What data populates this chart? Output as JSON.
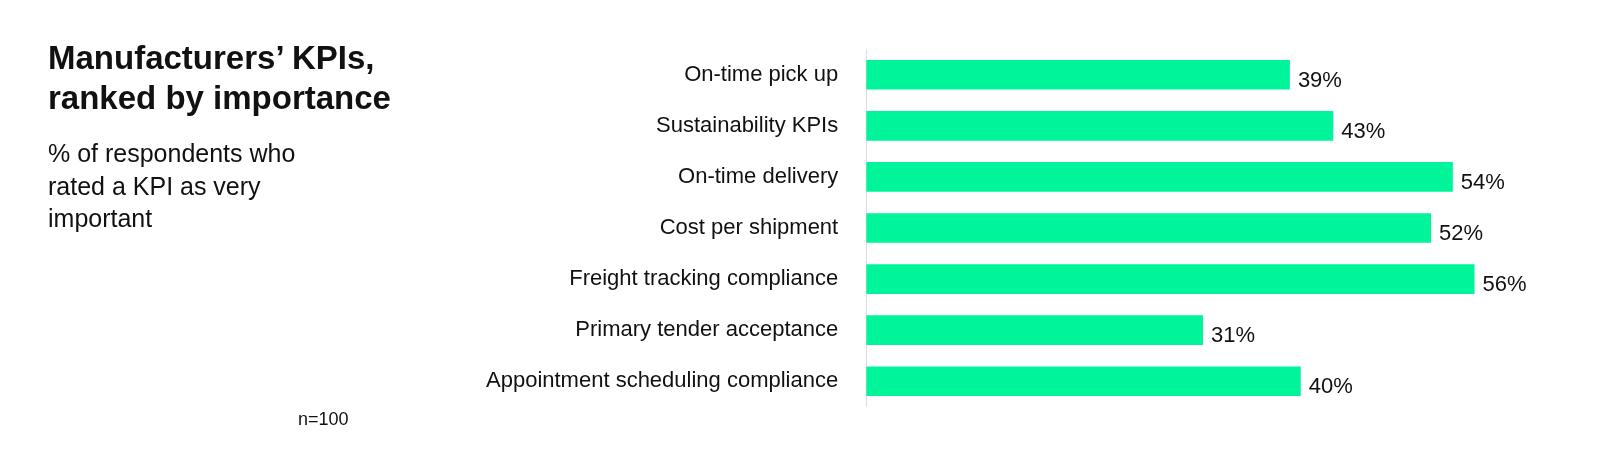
{
  "chart_data": {
    "type": "bar",
    "orientation": "horizontal",
    "title": "Manufacturers’ KPIs, ranked by importance",
    "subtitle": "% of respondents who rated a KPI as very important",
    "categories": [
      "On-time pick up",
      "Sustainability KPIs",
      "On-time delivery",
      "Cost per shipment",
      "Freight tracking compliance",
      "Primary tender acceptance",
      "Appointment scheduling compliance"
    ],
    "values": [
      39,
      43,
      54,
      52,
      56,
      31,
      40
    ],
    "value_labels": [
      "39%",
      "43%",
      "54%",
      "52%",
      "56%",
      "31%",
      "40%"
    ],
    "color": "#00f59b",
    "grid": false,
    "legend": false,
    "tick_labels": "y",
    "annotations": [
      "n=100"
    ]
  }
}
